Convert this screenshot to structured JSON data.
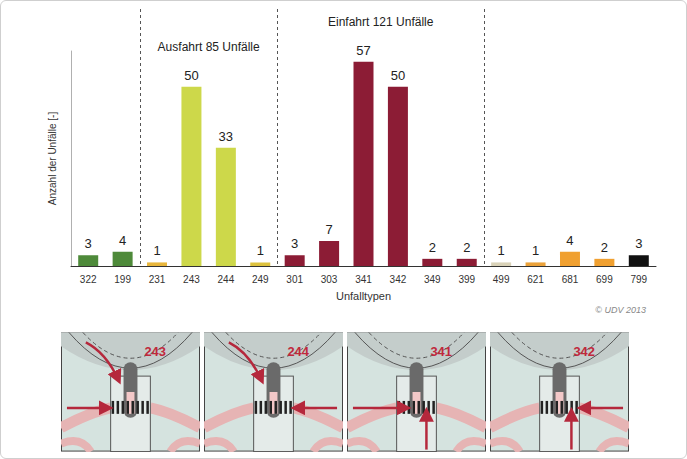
{
  "chart_data": {
    "type": "bar",
    "categories": [
      "322",
      "199",
      "231",
      "243",
      "244",
      "249",
      "301",
      "303",
      "341",
      "342",
      "349",
      "399",
      "499",
      "621",
      "681",
      "699",
      "799"
    ],
    "values": [
      3,
      4,
      1,
      50,
      33,
      1,
      3,
      7,
      57,
      50,
      2,
      2,
      1,
      1,
      4,
      2,
      3
    ],
    "colors": [
      "#4e8a3a",
      "#4e8a3a",
      "#e8b63c",
      "#cdd84a",
      "#cdd84a",
      "#ddc23e",
      "#8c1c35",
      "#8c1c35",
      "#8c1c35",
      "#8c1c35",
      "#8c1c35",
      "#8c1c35",
      "#d9d2b8",
      "#eba23a",
      "#f0a030",
      "#f0a030",
      "#111111"
    ],
    "x_label": "Unfalltypen",
    "y_label": "Anzahl der Unfälle [-]",
    "ylim": [
      0,
      60
    ],
    "data_labels": true,
    "tick_labels": "x",
    "grid": false,
    "groups": [
      {
        "label": "Ausfahrt 85 Unfälle",
        "from": "231",
        "to": "249"
      },
      {
        "label": "Einfahrt 121 Unfälle",
        "from": "301",
        "to": "399"
      }
    ],
    "source": "© UDV 2013"
  },
  "diagrams": [
    {
      "label": "243"
    },
    {
      "label": "244"
    },
    {
      "label": "341"
    },
    {
      "label": "342"
    }
  ]
}
